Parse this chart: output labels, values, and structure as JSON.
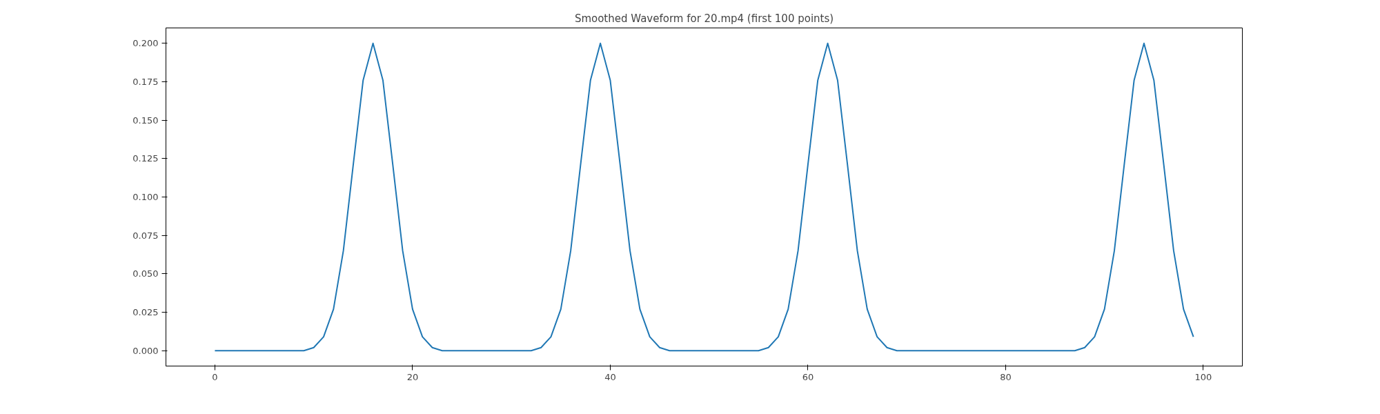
{
  "chart_data": {
    "type": "line",
    "title": "Smoothed Waveform for 20.mp4 (first 100 points)",
    "x": [
      0,
      1,
      2,
      3,
      4,
      5,
      6,
      7,
      8,
      9,
      10,
      11,
      12,
      13,
      14,
      15,
      16,
      17,
      18,
      19,
      20,
      21,
      22,
      23,
      24,
      25,
      26,
      27,
      28,
      29,
      30,
      31,
      32,
      33,
      34,
      35,
      36,
      37,
      38,
      39,
      40,
      41,
      42,
      43,
      44,
      45,
      46,
      47,
      48,
      49,
      50,
      51,
      52,
      53,
      54,
      55,
      56,
      57,
      58,
      59,
      60,
      61,
      62,
      63,
      64,
      65,
      66,
      67,
      68,
      69,
      70,
      71,
      72,
      73,
      74,
      75,
      76,
      77,
      78,
      79,
      80,
      81,
      82,
      83,
      84,
      85,
      86,
      87,
      88,
      89,
      90,
      91,
      92,
      93,
      94,
      95,
      96,
      97,
      98,
      99
    ],
    "series": [
      {
        "color": "#1f77b4",
        "values": [
          0,
          0,
          0,
          0,
          0,
          0,
          0,
          0,
          0,
          0,
          0.002,
          0.009,
          0.027,
          0.065,
          0.121,
          0.176,
          0.2,
          0.176,
          0.121,
          0.065,
          0.027,
          0.009,
          0.002,
          0,
          0,
          0,
          0,
          0,
          0,
          0,
          0,
          0,
          0,
          0.002,
          0.009,
          0.027,
          0.065,
          0.121,
          0.176,
          0.2,
          0.176,
          0.121,
          0.065,
          0.027,
          0.009,
          0.002,
          0,
          0,
          0,
          0,
          0,
          0,
          0,
          0,
          0,
          0,
          0.002,
          0.009,
          0.027,
          0.065,
          0.121,
          0.176,
          0.2,
          0.176,
          0.121,
          0.065,
          0.027,
          0.009,
          0.002,
          0,
          0,
          0,
          0,
          0,
          0,
          0,
          0,
          0,
          0,
          0,
          0,
          0,
          0,
          0,
          0,
          0,
          0,
          0,
          0.002,
          0.009,
          0.027,
          0.065,
          0.121,
          0.176,
          0.2,
          0.176,
          0.121,
          0.065,
          0.027,
          0.009
        ]
      }
    ],
    "xlim": [
      -4.95,
      103.95
    ],
    "ylim": [
      -0.01,
      0.21
    ],
    "xticks": [
      0,
      20,
      40,
      60,
      80,
      100
    ],
    "yticks": [
      {
        "value": 0,
        "label": "0.000"
      },
      {
        "value": 0.025,
        "label": "0.025"
      },
      {
        "value": 0.05,
        "label": "0.050"
      },
      {
        "value": 0.075,
        "label": "0.075"
      },
      {
        "value": 0.1,
        "label": "0.100"
      },
      {
        "value": 0.125,
        "label": "0.125"
      },
      {
        "value": 0.15,
        "label": "0.150"
      },
      {
        "value": 0.175,
        "label": "0.175"
      },
      {
        "value": 0.2,
        "label": "0.200"
      }
    ],
    "grid": false
  }
}
